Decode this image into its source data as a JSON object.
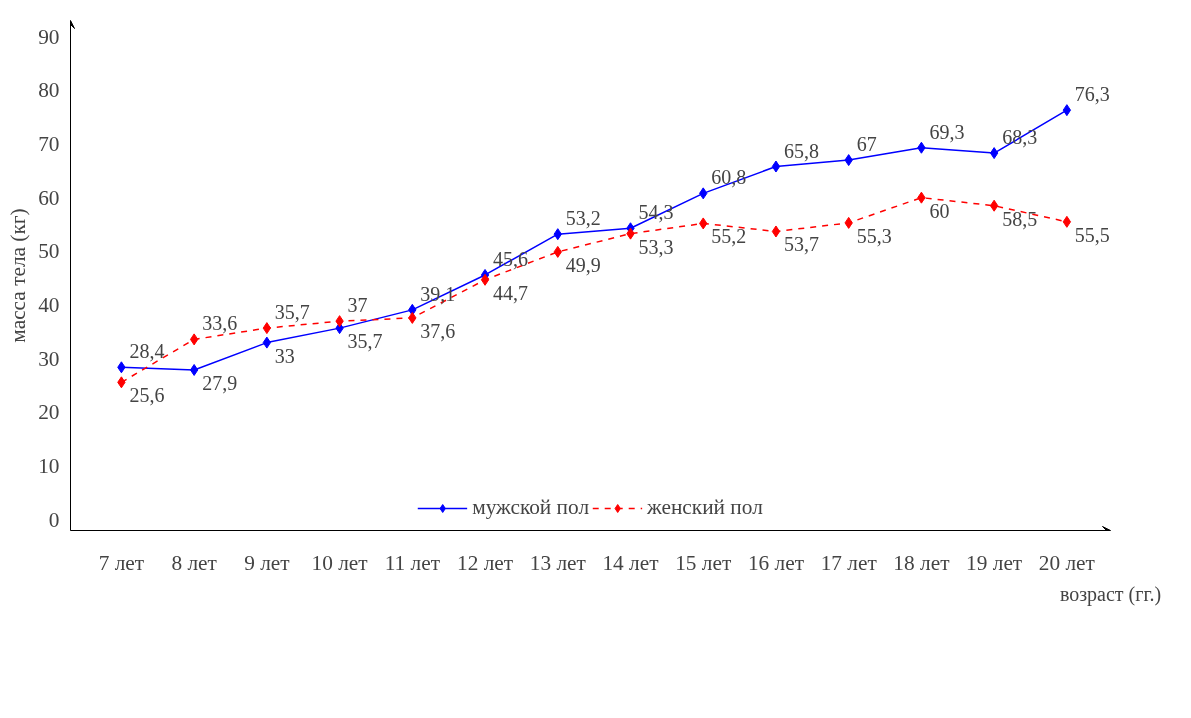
{
  "chart_data": {
    "type": "line",
    "ylabel": "масса тела (кг)",
    "xlabel": "возраст (гг.)",
    "categories": [
      "7 лет",
      "8 лет",
      "9 лет",
      "10 лет",
      "11 лет",
      "12 лет",
      "13 лет",
      "14 лет",
      "15 лет",
      "16 лет",
      "17 лет",
      "18 лет",
      "19 лет",
      "20 лет"
    ],
    "series": [
      {
        "name": "мужской пол",
        "color": "#0000ff",
        "line_style": "solid",
        "values": [
          28.4,
          27.9,
          33,
          35.7,
          39.1,
          45.6,
          53.2,
          54.3,
          60.8,
          65.8,
          67,
          69.3,
          68.3,
          76.3
        ],
        "value_labels": [
          "28,4",
          "27,9",
          "33",
          "35,7",
          "39,1",
          "45,6",
          "53,2",
          "54,3",
          "60,8",
          "65,8",
          "67",
          "69,3",
          "68,3",
          "76,3"
        ]
      },
      {
        "name": "женский пол",
        "color": "#ff0000",
        "line_style": "dashed",
        "values": [
          25.6,
          33.6,
          35.7,
          37,
          37.6,
          44.7,
          49.9,
          53.3,
          55.2,
          53.7,
          55.3,
          60,
          58.5,
          55.5
        ],
        "value_labels": [
          "25,6",
          "33,6",
          "35,7",
          "37",
          "37,6",
          "44,7",
          "49,9",
          "53,3",
          "55,2",
          "53,7",
          "55,3",
          "60",
          "58,5",
          "55,5"
        ]
      }
    ],
    "ylim": [
      -2,
      93
    ],
    "yticks": [
      0,
      10,
      20,
      30,
      40,
      50,
      60,
      70,
      80,
      90
    ],
    "grid": false,
    "legend": "bottom",
    "marker": "diamond",
    "data_labels": true
  }
}
